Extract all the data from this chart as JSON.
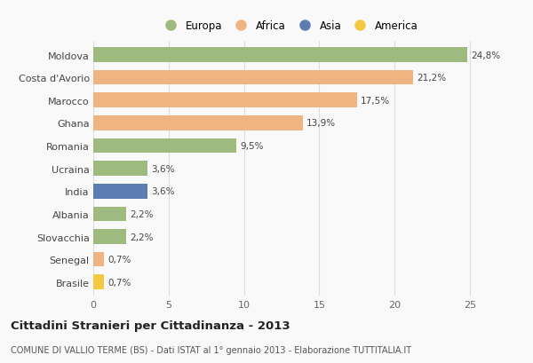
{
  "countries": [
    "Moldova",
    "Costa d'Avorio",
    "Marocco",
    "Ghana",
    "Romania",
    "Ucraina",
    "India",
    "Albania",
    "Slovacchia",
    "Senegal",
    "Brasile"
  ],
  "values": [
    24.8,
    21.2,
    17.5,
    13.9,
    9.5,
    3.6,
    3.6,
    2.2,
    2.2,
    0.7,
    0.7
  ],
  "labels": [
    "24,8%",
    "21,2%",
    "17,5%",
    "13,9%",
    "9,5%",
    "3,6%",
    "3,6%",
    "2,2%",
    "2,2%",
    "0,7%",
    "0,7%"
  ],
  "continents": [
    "Europa",
    "Africa",
    "Africa",
    "Africa",
    "Europa",
    "Europa",
    "Asia",
    "Europa",
    "Europa",
    "Africa",
    "America"
  ],
  "continent_colors": {
    "Europa": "#9eba7e",
    "Africa": "#f0b482",
    "Asia": "#5b7db1",
    "America": "#f5c842"
  },
  "legend_order": [
    "Europa",
    "Africa",
    "Asia",
    "America"
  ],
  "legend_colors": [
    "#9eba7e",
    "#f0b482",
    "#5b7db1",
    "#f5c842"
  ],
  "xlim": [
    0,
    26
  ],
  "xticks": [
    0,
    5,
    10,
    15,
    20,
    25
  ],
  "title": "Cittadini Stranieri per Cittadinanza - 2013",
  "subtitle": "COMUNE DI VALLIO TERME (BS) - Dati ISTAT al 1° gennaio 2013 - Elaborazione TUTTITALIA.IT",
  "background_color": "#f9f9f9",
  "grid_color": "#dddddd",
  "bar_height": 0.65
}
